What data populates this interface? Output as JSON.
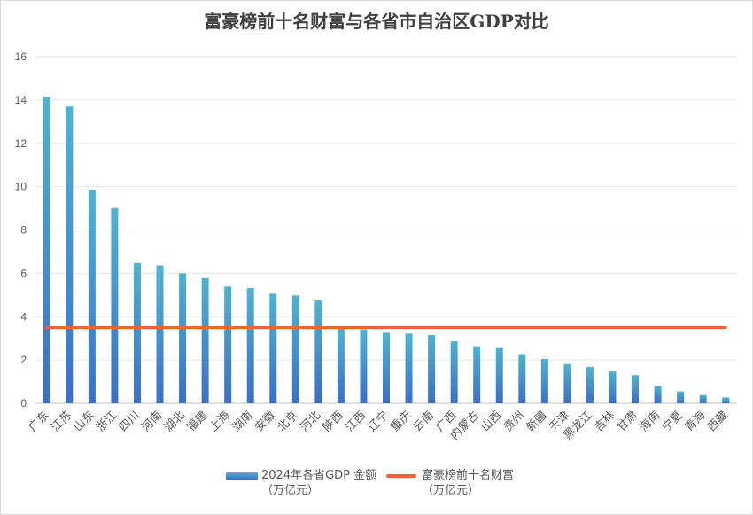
{
  "chart_data": {
    "type": "bar",
    "title": "富豪榜前十名财富与各省市自治区GDP对比",
    "categories": [
      "广东",
      "江苏",
      "山东",
      "浙江",
      "四川",
      "河南",
      "湖北",
      "福建",
      "上海",
      "湖南",
      "安徽",
      "北京",
      "河北",
      "陕西",
      "江西",
      "辽宁",
      "重庆",
      "云南",
      "广西",
      "内蒙古",
      "山西",
      "贵州",
      "新疆",
      "天津",
      "黑龙江",
      "吉林",
      "甘肃",
      "海南",
      "宁夏",
      "青海",
      "西藏"
    ],
    "series": [
      {
        "name": "2024年各省GDP 金额（万亿元）",
        "name_line1": "2024年各省GDP 金额",
        "name_line2": "（万亿元）",
        "type": "bar",
        "color_top": "#4fb3cf",
        "color_bottom": "#3b6fc8",
        "values": [
          14.16,
          13.7,
          9.86,
          9.01,
          6.47,
          6.36,
          6.0,
          5.78,
          5.39,
          5.32,
          5.06,
          4.98,
          4.75,
          3.55,
          3.42,
          3.26,
          3.22,
          3.15,
          2.86,
          2.63,
          2.55,
          2.27,
          2.05,
          1.8,
          1.68,
          1.47,
          1.3,
          0.8,
          0.55,
          0.38,
          0.27
        ]
      },
      {
        "name": "富豪榜前十名财富（万亿元）",
        "name_line1": "富豪榜前十名财富",
        "name_line2": "（万亿元）",
        "type": "line",
        "color": "#e8663c",
        "value": 3.5
      }
    ],
    "ylim": [
      0,
      16
    ],
    "yticks": [
      0,
      2,
      4,
      6,
      8,
      10,
      12,
      14,
      16
    ],
    "grid": true,
    "legend_position": "bottom"
  }
}
